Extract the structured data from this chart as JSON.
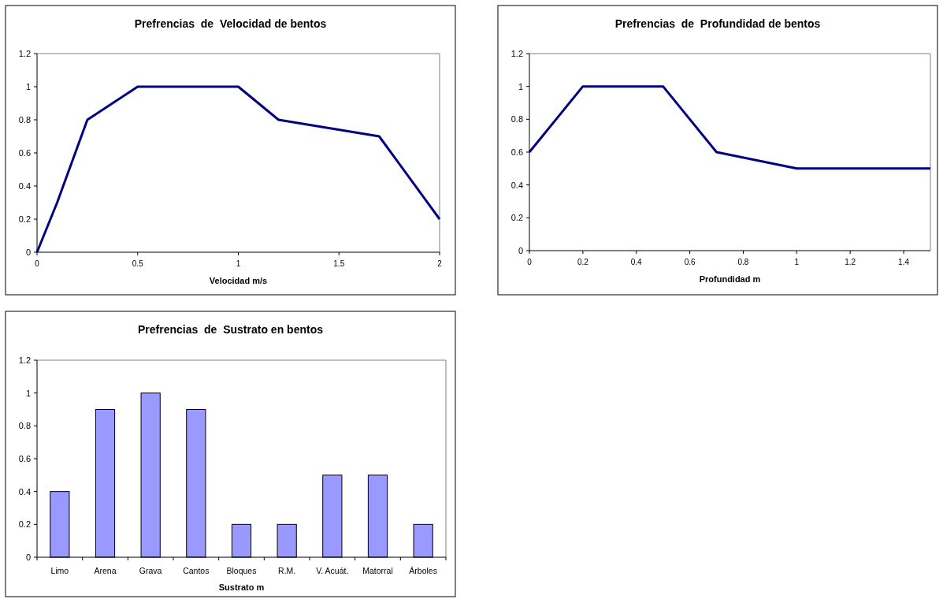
{
  "chart_data": [
    {
      "type": "line",
      "title": "Prefrencias  de  Velocidad de bentos",
      "xlabel": "Velocidad m/s",
      "x": [
        0,
        0.1,
        0.25,
        0.5,
        1,
        1.2,
        1.7,
        2
      ],
      "series": [
        {
          "color": "#000080",
          "values": [
            0,
            0.3,
            0.8,
            1,
            1,
            0.8,
            0.7,
            0.2
          ]
        }
      ],
      "xlim": [
        0,
        2
      ],
      "xticks": [
        0,
        0.5,
        1,
        1.5,
        2
      ],
      "ylim": [
        0,
        1.2
      ],
      "yticks": [
        0,
        0.2,
        0.4,
        0.6,
        0.8,
        1,
        1.2
      ],
      "grid": false,
      "marker": "none",
      "line_style": "solid"
    },
    {
      "type": "line",
      "title": "Prefrencias  de  Profundidad de bentos",
      "xlabel": "Profundidad m",
      "x": [
        0,
        0.2,
        0.5,
        0.7,
        1,
        1.5
      ],
      "series": [
        {
          "color": "#000080",
          "values": [
            0.6,
            1,
            1,
            0.6,
            0.5,
            0.5
          ]
        }
      ],
      "xlim": [
        0,
        1.5
      ],
      "xticks": [
        0,
        0.2,
        0.4,
        0.6,
        0.8,
        1,
        1.2,
        1.4
      ],
      "ylim": [
        0,
        1.2
      ],
      "yticks": [
        0,
        0.2,
        0.4,
        0.6,
        0.8,
        1,
        1.2
      ],
      "grid": false,
      "marker": "none",
      "line_style": "solid"
    },
    {
      "type": "bar",
      "title": "Prefrencias  de  Sustrato en bentos",
      "xlabel": "Sustrato m",
      "categories": [
        "Limo",
        "Arena",
        "Grava",
        "Cantos",
        "Bloques",
        "R.M.",
        "V. Acuát.",
        "Matorral",
        "Árboles"
      ],
      "series": [
        {
          "color": "#9999ff",
          "values": [
            0.4,
            0.9,
            1,
            0.9,
            0.2,
            0.2,
            0.5,
            0.5,
            0.2
          ]
        }
      ],
      "ylim": [
        0,
        1.2
      ],
      "yticks": [
        0,
        0.2,
        0.4,
        0.6,
        0.8,
        1,
        1.2
      ],
      "grid": false
    }
  ]
}
